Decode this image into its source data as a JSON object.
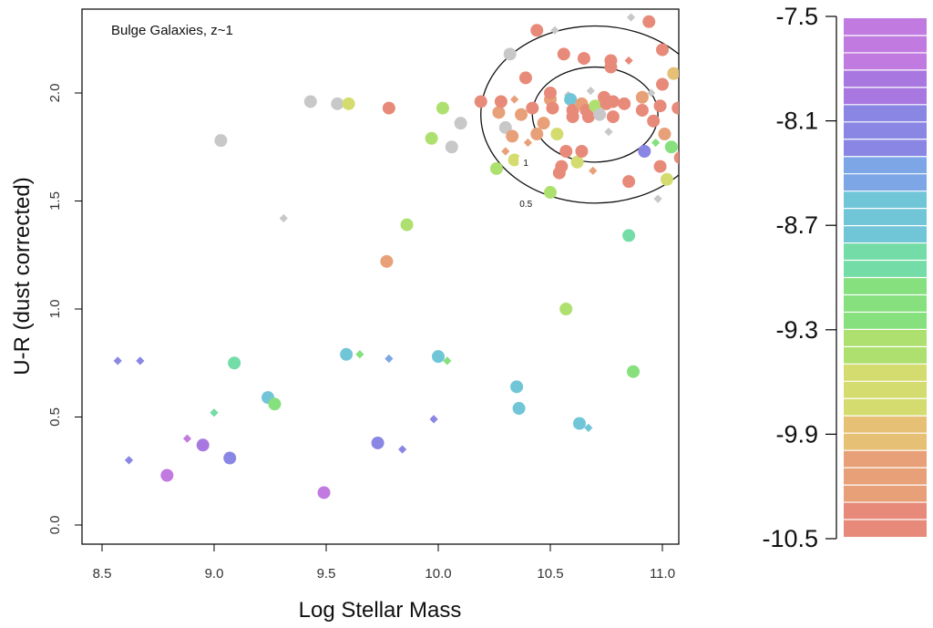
{
  "chart_data": {
    "type": "scatter",
    "title": "Bulge Galaxies, z~1",
    "xlabel": "Log Stellar Mass",
    "ylabel": "U-R (dust corrected)",
    "xlim": [
      8.42,
      11.08
    ],
    "ylim": [
      -0.1,
      2.42
    ],
    "xticks": [
      "8.5",
      "9.0",
      "9.5",
      "10.0",
      "10.5",
      "11.0"
    ],
    "yticks": [
      "0.0",
      "0.5",
      "1.0",
      "1.5",
      "2.0"
    ],
    "colorbar": {
      "ticks": [
        "-7.5",
        "-8.1",
        "-8.7",
        "-9.3",
        "-9.9",
        "-10.5"
      ],
      "range": [
        -10.5,
        -7.5
      ],
      "colors_top_to_bottom": [
        "#c07ae0",
        "#a878e0",
        "#8a86e4",
        "#7ca6e6",
        "#70c6d6",
        "#74dca6",
        "#86e07e",
        "#aee070",
        "#d4dc70",
        "#e6c074",
        "#e8a078",
        "#e88a7a"
      ],
      "grey": "#c8c8c8"
    },
    "contours": [
      {
        "level": "1",
        "center": [
          10.7,
          1.9
        ],
        "half_width": 0.28,
        "half_height": 0.22
      },
      {
        "level": "0.5",
        "center": [
          10.7,
          1.9
        ],
        "half_width": 0.51,
        "half_height": 0.41
      }
    ],
    "points": [
      {
        "x": 8.57,
        "y": 0.76,
        "m": "d",
        "c": -8.2
      },
      {
        "x": 8.67,
        "y": 0.76,
        "m": "d",
        "c": -8.2
      },
      {
        "x": 8.62,
        "y": 0.3,
        "m": "d",
        "c": -8.0
      },
      {
        "x": 8.79,
        "y": 0.23,
        "m": "c",
        "c": -7.6
      },
      {
        "x": 8.88,
        "y": 0.4,
        "m": "d",
        "c": -7.7
      },
      {
        "x": 8.95,
        "y": 0.37,
        "m": "c",
        "c": -7.8
      },
      {
        "x": 9.0,
        "y": 0.52,
        "m": "d",
        "c": -8.8
      },
      {
        "x": 9.03,
        "y": 1.78,
        "m": "c",
        "c": null
      },
      {
        "x": 9.07,
        "y": 0.31,
        "m": "c",
        "c": -8.1
      },
      {
        "x": 9.09,
        "y": 0.75,
        "m": "c",
        "c": -8.9
      },
      {
        "x": 9.24,
        "y": 0.59,
        "m": "c",
        "c": -8.5
      },
      {
        "x": 9.27,
        "y": 0.56,
        "m": "c",
        "c": -9.2
      },
      {
        "x": 9.31,
        "y": 1.42,
        "m": "d",
        "c": null
      },
      {
        "x": 9.43,
        "y": 1.96,
        "m": "c",
        "c": null
      },
      {
        "x": 9.49,
        "y": 0.15,
        "m": "c",
        "c": -7.6
      },
      {
        "x": 9.55,
        "y": 1.95,
        "m": "c",
        "c": null
      },
      {
        "x": 9.59,
        "y": 0.79,
        "m": "c",
        "c": -8.6
      },
      {
        "x": 9.6,
        "y": 1.95,
        "m": "c",
        "c": -9.6
      },
      {
        "x": 9.65,
        "y": 0.79,
        "m": "d",
        "c": -9.0
      },
      {
        "x": 9.73,
        "y": 0.38,
        "m": "c",
        "c": -8.0
      },
      {
        "x": 9.77,
        "y": 1.22,
        "m": "c",
        "c": -10.0
      },
      {
        "x": 9.78,
        "y": 0.77,
        "m": "d",
        "c": -8.3
      },
      {
        "x": 9.78,
        "y": 1.93,
        "m": "c",
        "c": -10.5
      },
      {
        "x": 9.84,
        "y": 0.35,
        "m": "d",
        "c": -8.1
      },
      {
        "x": 9.86,
        "y": 1.39,
        "m": "c",
        "c": -9.4
      },
      {
        "x": 9.97,
        "y": 1.79,
        "m": "c",
        "c": -9.4
      },
      {
        "x": 9.98,
        "y": 0.49,
        "m": "d",
        "c": -8.2
      },
      {
        "x": 10.0,
        "y": 0.78,
        "m": "c",
        "c": -8.5
      },
      {
        "x": 10.02,
        "y": 1.93,
        "m": "c",
        "c": -9.3
      },
      {
        "x": 10.04,
        "y": 0.76,
        "m": "d",
        "c": -9.1
      },
      {
        "x": 10.06,
        "y": 1.75,
        "m": "c",
        "c": null
      },
      {
        "x": 10.1,
        "y": 1.86,
        "m": "c",
        "c": null
      },
      {
        "x": 10.19,
        "y": 1.96,
        "m": "c",
        "c": -10.4
      },
      {
        "x": 10.26,
        "y": 1.65,
        "m": "c",
        "c": -9.4
      },
      {
        "x": 10.27,
        "y": 1.91,
        "m": "c",
        "c": -10.2
      },
      {
        "x": 10.28,
        "y": 1.96,
        "m": "c",
        "c": -10.4
      },
      {
        "x": 10.3,
        "y": 1.84,
        "m": "c",
        "c": null
      },
      {
        "x": 10.3,
        "y": 1.73,
        "m": "d",
        "c": -10.2
      },
      {
        "x": 10.32,
        "y": 2.18,
        "m": "c",
        "c": null
      },
      {
        "x": 10.33,
        "y": 1.8,
        "m": "c",
        "c": -10.2
      },
      {
        "x": 10.34,
        "y": 1.69,
        "m": "c",
        "c": -9.6
      },
      {
        "x": 10.34,
        "y": 1.97,
        "m": "d",
        "c": -10.0
      },
      {
        "x": 10.35,
        "y": 0.64,
        "m": "c",
        "c": -8.6
      },
      {
        "x": 10.36,
        "y": 0.54,
        "m": "c",
        "c": -8.5
      },
      {
        "x": 10.37,
        "y": 1.9,
        "m": "c",
        "c": -10.1
      },
      {
        "x": 10.39,
        "y": 2.07,
        "m": "c",
        "c": -10.4
      },
      {
        "x": 10.4,
        "y": 1.77,
        "m": "d",
        "c": -10.1
      },
      {
        "x": 10.42,
        "y": 1.93,
        "m": "c",
        "c": -10.4
      },
      {
        "x": 10.44,
        "y": 1.81,
        "m": "c",
        "c": -10.2
      },
      {
        "x": 10.44,
        "y": 2.29,
        "m": "c",
        "c": -10.4
      },
      {
        "x": 10.47,
        "y": 1.86,
        "m": "c",
        "c": -10.2
      },
      {
        "x": 10.5,
        "y": 1.54,
        "m": "c",
        "c": -9.3
      },
      {
        "x": 10.5,
        "y": 1.97,
        "m": "c",
        "c": -10.2
      },
      {
        "x": 10.5,
        "y": 2.0,
        "m": "c",
        "c": -10.4
      },
      {
        "x": 10.51,
        "y": 1.93,
        "m": "c",
        "c": -10.4
      },
      {
        "x": 10.52,
        "y": 2.29,
        "m": "d",
        "c": null
      },
      {
        "x": 10.53,
        "y": 1.81,
        "m": "c",
        "c": -9.6
      },
      {
        "x": 10.54,
        "y": 1.63,
        "m": "c",
        "c": -10.4
      },
      {
        "x": 10.55,
        "y": 1.66,
        "m": "c",
        "c": -10.4
      },
      {
        "x": 10.56,
        "y": 2.18,
        "m": "c",
        "c": -10.4
      },
      {
        "x": 10.57,
        "y": 1.0,
        "m": "c",
        "c": -9.3
      },
      {
        "x": 10.57,
        "y": 1.73,
        "m": "c",
        "c": -10.3
      },
      {
        "x": 10.58,
        "y": 1.99,
        "m": "d",
        "c": null
      },
      {
        "x": 10.59,
        "y": 1.97,
        "m": "c",
        "c": -8.6
      },
      {
        "x": 10.6,
        "y": 1.89,
        "m": "c",
        "c": -10.4
      },
      {
        "x": 10.6,
        "y": 1.92,
        "m": "c",
        "c": -10.4
      },
      {
        "x": 10.62,
        "y": 1.68,
        "m": "c",
        "c": -9.7
      },
      {
        "x": 10.63,
        "y": 0.47,
        "m": "c",
        "c": -8.6
      },
      {
        "x": 10.64,
        "y": 1.73,
        "m": "c",
        "c": -10.4
      },
      {
        "x": 10.64,
        "y": 1.95,
        "m": "c",
        "c": -10.2
      },
      {
        "x": 10.65,
        "y": 2.16,
        "m": "c",
        "c": -10.4
      },
      {
        "x": 10.66,
        "y": 1.92,
        "m": "c",
        "c": -10.4
      },
      {
        "x": 10.67,
        "y": 0.45,
        "m": "d",
        "c": -8.6
      },
      {
        "x": 10.67,
        "y": 1.89,
        "m": "c",
        "c": -10.4
      },
      {
        "x": 10.68,
        "y": 2.01,
        "m": "d",
        "c": null
      },
      {
        "x": 10.69,
        "y": 1.64,
        "m": "d",
        "c": -10.0
      },
      {
        "x": 10.7,
        "y": 1.94,
        "m": "c",
        "c": -9.3
      },
      {
        "x": 10.72,
        "y": 1.9,
        "m": "c",
        "c": null
      },
      {
        "x": 10.74,
        "y": 1.98,
        "m": "c",
        "c": -10.4
      },
      {
        "x": 10.75,
        "y": 1.95,
        "m": "c",
        "c": -10.4
      },
      {
        "x": 10.76,
        "y": 1.82,
        "m": "d",
        "c": null
      },
      {
        "x": 10.77,
        "y": 2.12,
        "m": "c",
        "c": -10.3
      },
      {
        "x": 10.77,
        "y": 2.15,
        "m": "c",
        "c": -10.4
      },
      {
        "x": 10.78,
        "y": 1.89,
        "m": "c",
        "c": -10.4
      },
      {
        "x": 10.78,
        "y": 1.96,
        "m": "c",
        "c": -10.4
      },
      {
        "x": 10.83,
        "y": 1.95,
        "m": "c",
        "c": -10.4
      },
      {
        "x": 10.85,
        "y": 1.34,
        "m": "c",
        "c": -8.9
      },
      {
        "x": 10.85,
        "y": 2.15,
        "m": "d",
        "c": -10.5
      },
      {
        "x": 10.85,
        "y": 1.59,
        "m": "c",
        "c": -10.4
      },
      {
        "x": 10.86,
        "y": 2.35,
        "m": "d",
        "c": null
      },
      {
        "x": 10.87,
        "y": 0.71,
        "m": "c",
        "c": -9.1
      },
      {
        "x": 10.91,
        "y": 1.98,
        "m": "c",
        "c": -10.1
      },
      {
        "x": 10.91,
        "y": 1.92,
        "m": "c",
        "c": -10.4
      },
      {
        "x": 10.92,
        "y": 1.73,
        "m": "c",
        "c": -8.0
      },
      {
        "x": 10.94,
        "y": 2.33,
        "m": "c",
        "c": -10.5
      },
      {
        "x": 10.95,
        "y": 2.0,
        "m": "d",
        "c": null
      },
      {
        "x": 10.96,
        "y": 1.87,
        "m": "c",
        "c": -10.4
      },
      {
        "x": 10.97,
        "y": 1.77,
        "m": "d",
        "c": -9.1
      },
      {
        "x": 10.98,
        "y": 1.51,
        "m": "d",
        "c": null
      },
      {
        "x": 10.99,
        "y": 1.66,
        "m": "c",
        "c": -10.4
      },
      {
        "x": 10.99,
        "y": 1.94,
        "m": "c",
        "c": -10.4
      },
      {
        "x": 11.0,
        "y": 2.04,
        "m": "c",
        "c": -10.4
      },
      {
        "x": 11.0,
        "y": 2.2,
        "m": "c",
        "c": -10.4
      },
      {
        "x": 11.01,
        "y": 1.81,
        "m": "c",
        "c": -10.1
      },
      {
        "x": 11.02,
        "y": 1.6,
        "m": "c",
        "c": -9.6
      },
      {
        "x": 11.04,
        "y": 1.75,
        "m": "c",
        "c": -9.0
      },
      {
        "x": 11.05,
        "y": 2.09,
        "m": "c",
        "c": -9.8
      },
      {
        "x": 11.07,
        "y": 1.93,
        "m": "c",
        "c": -10.4
      },
      {
        "x": 11.08,
        "y": 1.7,
        "m": "c",
        "c": -10.4
      }
    ]
  }
}
